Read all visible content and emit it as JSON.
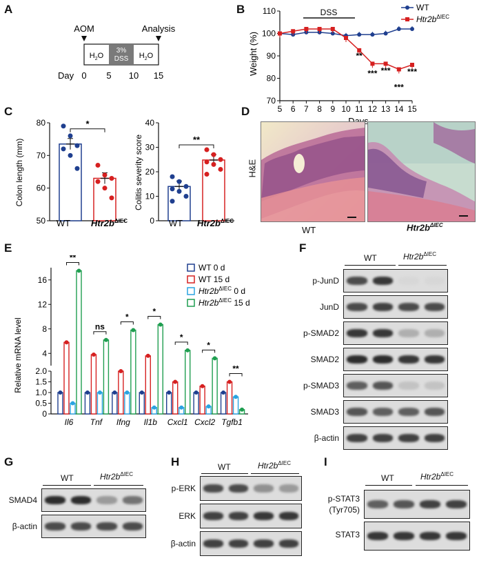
{
  "panels": {
    "A": "A",
    "B": "B",
    "C": "C",
    "D": "D",
    "E": "E",
    "F": "F",
    "G": "G",
    "H": "H",
    "I": "I"
  },
  "panelA": {
    "aom": "AOM",
    "analysis": "Analysis",
    "seg1": "H",
    "seg1_sub": "2",
    "seg1_end": "O",
    "dss_line1": "3%",
    "dss_line2": "DSS",
    "seg3": "H",
    "seg3_sub": "2",
    "seg3_end": "O",
    "day_label": "Day",
    "days": [
      "0",
      "5",
      "10",
      "15"
    ]
  },
  "panelB": {
    "ylabel": "Weight (%)",
    "xlabel": "Days",
    "dss": "DSS",
    "legend_wt": "WT",
    "legend_ko_gene": "Htr2b",
    "legend_ko_sup": "ΔIEC",
    "yticks": [
      "70",
      "80",
      "90",
      "100",
      "110"
    ],
    "xticks": [
      "5",
      "6",
      "7",
      "8",
      "9",
      "10",
      "11",
      "12",
      "13",
      "14",
      "15"
    ],
    "sig": [
      "**",
      "***",
      "***",
      "***",
      "***"
    ],
    "colors": {
      "wt": "#1f3f8f",
      "ko": "#d62020"
    }
  },
  "panelC": {
    "left_ylabel": "Colon length (mm)",
    "left_yticks": [
      "50",
      "60",
      "70",
      "80"
    ],
    "left_sig": "*",
    "right_ylabel": "Colitis severity score",
    "right_yticks": [
      "0",
      "10",
      "20",
      "30",
      "40"
    ],
    "right_sig": "**",
    "x_wt": "WT",
    "x_ko_gene": "Htr2b",
    "x_ko_sup": "ΔIEC"
  },
  "panelD": {
    "side_label": "H&E",
    "left_label": "WT",
    "right_gene": "Htr2b",
    "right_sup": "ΔIEC"
  },
  "panelE": {
    "ylabel": "Relative mRNA level",
    "legend": [
      {
        "gene": "",
        "text": "WT  0 d",
        "sup": "",
        "suffix": ""
      },
      {
        "gene": "",
        "text": "WT  15 d",
        "sup": "",
        "suffix": ""
      },
      {
        "gene": "Htr2b",
        "text": "",
        "sup": "ΔIEC",
        "suffix": " 0 d"
      },
      {
        "gene": "Htr2b",
        "text": "",
        "sup": "ΔIEC",
        "suffix": " 15 d"
      }
    ],
    "genes": [
      "Il6",
      "Tnf",
      "Ifng",
      "Il1b",
      "Cxcl1",
      "Cxcl2",
      "Tgfb1"
    ],
    "sig": [
      "**",
      "ns",
      "*",
      "*",
      "*",
      "*",
      "**"
    ],
    "yticks_upper": [
      "16",
      "12",
      "8",
      "4"
    ],
    "yticks_lower": [
      "0",
      "0.5",
      "1.0",
      "1.5",
      "2.0"
    ],
    "colors": {
      "wt0": "#1f3f8f",
      "wt15": "#d62020",
      "ko0": "#2aa3e0",
      "ko15": "#1f9e50"
    }
  },
  "panelF": {
    "head_wt": "WT",
    "head_ko_gene": "Htr2b",
    "head_ko_sup": "ΔIEC",
    "rows": [
      "p-JunD",
      "JunD",
      "p-SMAD2",
      "SMAD2",
      "p-SMAD3",
      "SMAD3",
      "β-actin"
    ]
  },
  "panelG": {
    "head_wt": "WT",
    "head_ko_gene": "Htr2b",
    "head_ko_sup": "ΔIEC",
    "rows": [
      "SMAD4",
      "β-actin"
    ]
  },
  "panelH": {
    "head_wt": "WT",
    "head_ko_gene": "Htr2b",
    "head_ko_sup": "ΔIEC",
    "rows": [
      "p-ERK",
      "ERK",
      "β-actin"
    ]
  },
  "panelI": {
    "head_wt": "WT",
    "head_ko_gene": "Htr2b",
    "head_ko_sup": "ΔIEC",
    "rows": [
      "p-STAT3",
      "(Tyr705)",
      "STAT3"
    ]
  },
  "chart_data": [
    {
      "type": "line",
      "title": "",
      "xlabel": "Days",
      "ylabel": "Weight (%)",
      "xlim": [
        5,
        15
      ],
      "ylim": [
        70,
        110
      ],
      "x": [
        5,
        6,
        7,
        8,
        9,
        10,
        11,
        12,
        13,
        14,
        15
      ],
      "series": [
        {
          "name": "WT",
          "values": [
            100,
            99.5,
            100.5,
            100.5,
            100,
            99,
            99.5,
            99.5,
            100,
            102,
            102
          ]
        },
        {
          "name": "Htr2b ΔIEC",
          "values": [
            100,
            101,
            102,
            102,
            102,
            98,
            92.5,
            86.5,
            86.5,
            84,
            86
          ]
        }
      ],
      "legend": "top-right"
    },
    {
      "type": "bar",
      "ylabel": "Colon length (mm)",
      "ylim": [
        50,
        80
      ],
      "categories": [
        "WT",
        "Htr2b ΔIEC"
      ],
      "values": [
        73.5,
        63
      ]
    },
    {
      "type": "bar",
      "ylabel": "Colitis severity score",
      "ylim": [
        0,
        40
      ],
      "categories": [
        "WT",
        "Htr2b ΔIEC"
      ],
      "values": [
        14,
        24.8
      ]
    },
    {
      "type": "bar",
      "ylabel": "Relative mRNA level",
      "categories": [
        "Il6",
        "Tnf",
        "Ifng",
        "Il1b",
        "Cxcl1",
        "Cxcl2",
        "Tgfb1"
      ],
      "series": [
        {
          "name": "WT 0 d",
          "values": [
            1.0,
            1.0,
            1.0,
            1.0,
            1.0,
            1.0,
            1.0
          ]
        },
        {
          "name": "WT 15 d",
          "values": [
            5.8,
            3.8,
            2.0,
            3.6,
            1.5,
            1.3,
            1.5
          ]
        },
        {
          "name": "Htr2b ΔIEC 0 d",
          "values": [
            0.5,
            1.0,
            1.0,
            0.3,
            0.3,
            0.35,
            0.8
          ]
        },
        {
          "name": "Htr2b ΔIEC 15 d",
          "values": [
            17.5,
            6.2,
            7.8,
            8.7,
            4.5,
            3.2,
            0.2
          ]
        }
      ]
    }
  ]
}
